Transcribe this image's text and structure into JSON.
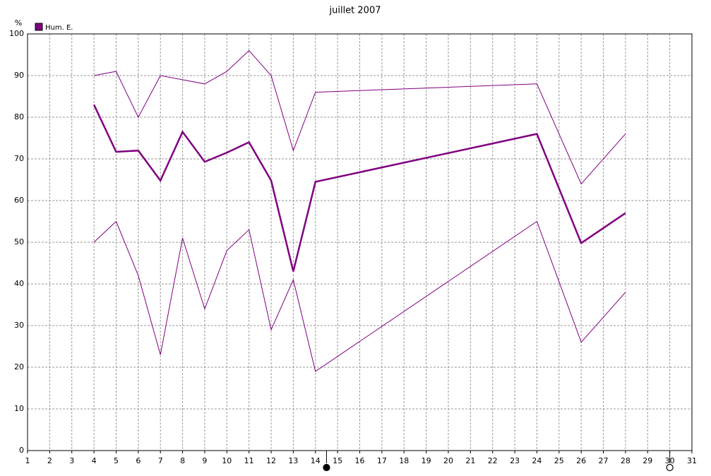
{
  "chart_data": {
    "type": "line",
    "title": "juillet 2007",
    "y_label": "%",
    "x": [
      4,
      5,
      6,
      7,
      8,
      9,
      10,
      11,
      12,
      13,
      14,
      24,
      26,
      28
    ],
    "series": [
      {
        "name": "Hum. E.",
        "color": "#800080",
        "width": 2.5,
        "values": [
          83,
          71.7,
          72,
          64.8,
          76.5,
          69.3,
          71.5,
          74,
          64.8,
          43,
          64.5,
          76,
          49.8,
          57
        ]
      },
      {
        "color": "#800080",
        "width": 1,
        "values": [
          90,
          91,
          80,
          90,
          89,
          88,
          91,
          96,
          90,
          72,
          86,
          88,
          64,
          76
        ]
      },
      {
        "color": "#800080",
        "width": 1,
        "values": [
          50,
          55,
          42,
          23,
          51,
          34,
          48,
          53,
          29,
          41,
          19,
          55,
          26,
          38
        ]
      }
    ],
    "xlim": [
      1,
      31
    ],
    "xticks": [
      1,
      2,
      3,
      4,
      5,
      6,
      7,
      8,
      9,
      10,
      11,
      12,
      13,
      14,
      15,
      16,
      17,
      18,
      19,
      20,
      21,
      22,
      23,
      24,
      25,
      26,
      27,
      28,
      29,
      30,
      31
    ],
    "ylim": [
      0,
      100
    ],
    "yticks": [
      0,
      10,
      20,
      30,
      40,
      50,
      60,
      70,
      80,
      90,
      100
    ],
    "grid": true,
    "markers": [
      {
        "x": 14.5,
        "filled": true
      },
      {
        "x": 30,
        "filled": false
      }
    ]
  }
}
